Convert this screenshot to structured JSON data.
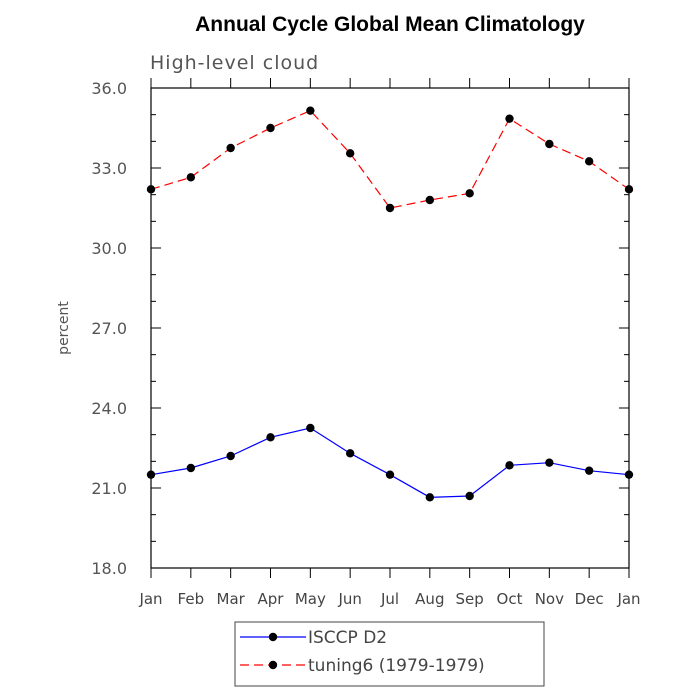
{
  "chart_data": {
    "type": "line",
    "title": "Annual Cycle Global Mean Climatology",
    "subtitle": "High-level cloud",
    "xlabel": "",
    "ylabel": "percent",
    "categories": [
      "Jan",
      "Feb",
      "Mar",
      "Apr",
      "May",
      "Jun",
      "Jul",
      "Aug",
      "Sep",
      "Oct",
      "Nov",
      "Dec",
      "Jan"
    ],
    "ylim": [
      18.0,
      36.0
    ],
    "yticks": [
      "18.0",
      "21.0",
      "24.0",
      "27.0",
      "30.0",
      "33.0",
      "36.0"
    ],
    "grid": false,
    "legend_position": "bottom",
    "series": [
      {
        "name": "ISCCP D2",
        "color": "#0000ff",
        "line_style": "solid",
        "values": [
          21.5,
          21.75,
          22.2,
          22.9,
          23.25,
          22.3,
          21.5,
          20.65,
          20.7,
          21.85,
          21.95,
          21.65,
          21.5
        ]
      },
      {
        "name": "tuning6 (1979-1979)",
        "color": "#ff0000",
        "line_style": "dashed",
        "values": [
          32.2,
          32.65,
          33.75,
          34.5,
          35.15,
          33.55,
          31.5,
          31.8,
          32.05,
          34.85,
          33.9,
          33.25,
          32.2
        ]
      }
    ]
  }
}
